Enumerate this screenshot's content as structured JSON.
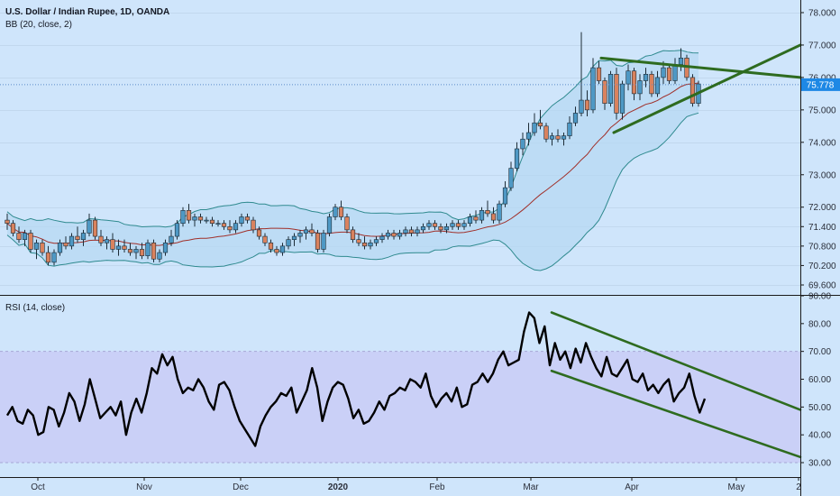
{
  "legend": {
    "symbol": "U.S. Dollar / Indian Rupee, 1D, OANDA",
    "bb": "BB (20, close, 2)",
    "rsi": "RSI (14, close)"
  },
  "colors": {
    "background": "#cfe5fb",
    "band_fill": "#b5d9f2",
    "band_line": "#2f8a8f",
    "basis_line": "#a0302a",
    "candle_up": "#4e98c4",
    "candle_down": "#d9825e",
    "trendline": "#2e6b1f",
    "rsi_line": "#000000",
    "rsi_band_fill": "#c8c8f5",
    "price_label_bg": "#1e88e5",
    "last_price_line": "#5b8cc9"
  },
  "chart_data": [
    {
      "type": "candlestick",
      "title": "U.S. Dollar / Indian Rupee, 1D, OANDA",
      "indicator": "BB (20, close, 2)",
      "price_ticks": [
        "78.000",
        "77.000",
        "76.000",
        "75.000",
        "74.000",
        "73.000",
        "72.000",
        "71.400",
        "70.800",
        "70.200",
        "69.600"
      ],
      "ylim": [
        69.3,
        78.2
      ],
      "last_price": "75.778",
      "candles": [
        [
          71.6,
          71.8,
          71.3,
          71.5
        ],
        [
          71.5,
          71.6,
          71.1,
          71.2
        ],
        [
          71.2,
          71.4,
          70.9,
          71.0
        ],
        [
          71.0,
          71.3,
          70.8,
          71.2
        ],
        [
          71.2,
          71.3,
          70.6,
          70.7
        ],
        [
          70.7,
          71.0,
          70.4,
          70.9
        ],
        [
          70.9,
          71.0,
          70.5,
          70.6
        ],
        [
          70.6,
          70.8,
          70.2,
          70.3
        ],
        [
          70.3,
          70.7,
          70.2,
          70.6
        ],
        [
          70.6,
          71.0,
          70.5,
          70.9
        ],
        [
          70.9,
          71.1,
          70.7,
          70.8
        ],
        [
          70.8,
          71.2,
          70.7,
          71.1
        ],
        [
          71.1,
          71.4,
          70.9,
          71.0
        ],
        [
          71.0,
          71.3,
          70.8,
          71.2
        ],
        [
          71.2,
          71.8,
          71.1,
          71.6
        ],
        [
          71.6,
          71.7,
          71.0,
          71.1
        ],
        [
          71.1,
          71.3,
          70.8,
          70.9
        ],
        [
          70.9,
          71.1,
          70.7,
          71.0
        ],
        [
          71.0,
          71.2,
          70.6,
          70.7
        ],
        [
          70.7,
          71.0,
          70.5,
          70.8
        ],
        [
          70.8,
          71.0,
          70.6,
          70.7
        ],
        [
          70.7,
          70.9,
          70.5,
          70.6
        ],
        [
          70.6,
          70.8,
          70.4,
          70.7
        ],
        [
          70.7,
          70.9,
          70.4,
          70.5
        ],
        [
          70.5,
          71.0,
          70.4,
          70.9
        ],
        [
          70.9,
          71.0,
          70.3,
          70.4
        ],
        [
          70.4,
          70.7,
          70.3,
          70.6
        ],
        [
          70.6,
          71.0,
          70.5,
          70.9
        ],
        [
          70.9,
          71.3,
          70.8,
          71.1
        ],
        [
          71.1,
          71.6,
          71.0,
          71.5
        ],
        [
          71.5,
          72.0,
          71.4,
          71.9
        ],
        [
          71.9,
          72.1,
          71.5,
          71.6
        ],
        [
          71.6,
          71.8,
          71.4,
          71.7
        ],
        [
          71.7,
          71.8,
          71.5,
          71.6
        ],
        [
          71.6,
          71.7,
          71.5,
          71.6
        ],
        [
          71.6,
          71.7,
          71.4,
          71.5
        ],
        [
          71.5,
          71.6,
          71.4,
          71.5
        ],
        [
          71.5,
          71.6,
          71.3,
          71.4
        ],
        [
          71.4,
          71.6,
          71.2,
          71.3
        ],
        [
          71.3,
          71.6,
          71.2,
          71.5
        ],
        [
          71.5,
          71.8,
          71.4,
          71.7
        ],
        [
          71.7,
          71.8,
          71.5,
          71.6
        ],
        [
          71.6,
          71.7,
          71.2,
          71.3
        ],
        [
          71.3,
          71.4,
          71.0,
          71.1
        ],
        [
          71.1,
          71.2,
          70.8,
          70.9
        ],
        [
          70.9,
          71.0,
          70.6,
          70.7
        ],
        [
          70.7,
          70.8,
          70.5,
          70.6
        ],
        [
          70.6,
          70.9,
          70.5,
          70.8
        ],
        [
          70.8,
          71.1,
          70.7,
          71.0
        ],
        [
          71.0,
          71.2,
          70.8,
          71.1
        ],
        [
          71.1,
          71.3,
          70.9,
          71.2
        ],
        [
          71.2,
          71.4,
          71.0,
          71.3
        ],
        [
          71.3,
          71.5,
          71.1,
          71.2
        ],
        [
          71.2,
          71.3,
          70.6,
          70.7
        ],
        [
          70.7,
          71.3,
          70.6,
          71.2
        ],
        [
          71.2,
          71.8,
          71.1,
          71.7
        ],
        [
          71.7,
          72.1,
          71.6,
          72.0
        ],
        [
          72.0,
          72.2,
          71.6,
          71.7
        ],
        [
          71.7,
          71.8,
          71.2,
          71.3
        ],
        [
          71.3,
          71.4,
          70.9,
          71.0
        ],
        [
          71.0,
          71.2,
          70.8,
          70.9
        ],
        [
          70.9,
          71.1,
          70.7,
          70.8
        ],
        [
          70.8,
          71.0,
          70.7,
          70.9
        ],
        [
          70.9,
          71.1,
          70.8,
          71.0
        ],
        [
          71.0,
          71.2,
          70.9,
          71.1
        ],
        [
          71.1,
          71.3,
          71.0,
          71.2
        ],
        [
          71.2,
          71.3,
          71.0,
          71.1
        ],
        [
          71.1,
          71.3,
          71.0,
          71.2
        ],
        [
          71.2,
          71.4,
          71.1,
          71.3
        ],
        [
          71.3,
          71.4,
          71.1,
          71.2
        ],
        [
          71.2,
          71.4,
          71.1,
          71.3
        ],
        [
          71.3,
          71.5,
          71.2,
          71.4
        ],
        [
          71.4,
          71.6,
          71.3,
          71.5
        ],
        [
          71.5,
          71.6,
          71.3,
          71.4
        ],
        [
          71.4,
          71.5,
          71.2,
          71.3
        ],
        [
          71.3,
          71.5,
          71.2,
          71.4
        ],
        [
          71.4,
          71.6,
          71.3,
          71.5
        ],
        [
          71.5,
          71.6,
          71.3,
          71.4
        ],
        [
          71.4,
          71.6,
          71.3,
          71.5
        ],
        [
          71.5,
          71.8,
          71.4,
          71.7
        ],
        [
          71.7,
          71.9,
          71.5,
          71.6
        ],
        [
          71.6,
          72.0,
          71.5,
          71.9
        ],
        [
          71.9,
          72.2,
          71.7,
          71.8
        ],
        [
          71.8,
          72.0,
          71.5,
          71.6
        ],
        [
          71.6,
          72.2,
          71.5,
          72.1
        ],
        [
          72.1,
          72.8,
          72.0,
          72.6
        ],
        [
          72.6,
          73.4,
          72.5,
          73.2
        ],
        [
          73.2,
          74.0,
          73.1,
          73.8
        ],
        [
          73.8,
          74.3,
          73.6,
          74.1
        ],
        [
          74.1,
          74.6,
          73.9,
          74.3
        ],
        [
          74.3,
          74.9,
          74.2,
          74.6
        ],
        [
          74.6,
          75.0,
          74.4,
          74.5
        ],
        [
          74.5,
          74.6,
          74.0,
          74.1
        ],
        [
          74.1,
          74.3,
          73.9,
          74.2
        ],
        [
          74.2,
          74.4,
          74.0,
          74.1
        ],
        [
          74.1,
          74.3,
          73.9,
          74.2
        ],
        [
          74.2,
          74.8,
          74.1,
          74.6
        ],
        [
          74.6,
          75.1,
          74.5,
          74.9
        ],
        [
          74.9,
          77.4,
          74.8,
          75.3
        ],
        [
          75.3,
          75.6,
          74.8,
          75.0
        ],
        [
          75.0,
          76.6,
          74.9,
          76.3
        ],
        [
          76.3,
          76.5,
          75.8,
          75.9
        ],
        [
          75.9,
          76.0,
          75.0,
          75.2
        ],
        [
          75.2,
          76.2,
          75.1,
          76.1
        ],
        [
          76.1,
          76.3,
          74.7,
          74.9
        ],
        [
          74.9,
          75.9,
          74.7,
          75.8
        ],
        [
          75.8,
          76.4,
          75.6,
          76.2
        ],
        [
          76.2,
          76.3,
          75.3,
          75.5
        ],
        [
          75.5,
          76.1,
          75.3,
          75.9
        ],
        [
          75.9,
          76.3,
          75.7,
          76.1
        ],
        [
          76.1,
          76.2,
          75.4,
          75.5
        ],
        [
          75.5,
          76.2,
          75.4,
          76.0
        ],
        [
          76.0,
          76.5,
          75.8,
          76.3
        ],
        [
          76.3,
          76.4,
          75.8,
          75.9
        ],
        [
          75.9,
          76.6,
          75.8,
          76.4
        ],
        [
          76.4,
          76.9,
          76.2,
          76.6
        ],
        [
          76.6,
          76.7,
          75.9,
          76.0
        ],
        [
          76.0,
          76.1,
          75.1,
          75.2
        ],
        [
          75.2,
          75.9,
          75.1,
          75.8
        ]
      ],
      "trendlines": [
        {
          "from": [
            76.6,
            76.0
          ],
          "to": [
            77.0,
            76.0
          ]
        },
        {
          "from": [
            74.3,
            75.8
          ],
          "to": [
            75.5,
            77.0
          ]
        }
      ]
    },
    {
      "type": "line",
      "title": "RSI (14, close)",
      "rsi_ticks": [
        "90.00",
        "80.00",
        "70.00",
        "60.00",
        "50.00",
        "40.00",
        "30.00"
      ],
      "ylim": [
        26,
        90
      ],
      "band": [
        30,
        70
      ],
      "values": [
        47,
        50,
        45,
        44,
        49,
        47,
        40,
        41,
        50,
        49,
        43,
        48,
        55,
        52,
        45,
        51,
        60,
        53,
        46,
        48,
        50,
        47,
        52,
        40,
        48,
        53,
        48,
        55,
        64,
        62,
        69,
        65,
        68,
        60,
        55,
        57,
        56,
        60,
        57,
        52,
        49,
        58,
        59,
        56,
        50,
        45,
        42,
        39,
        36,
        43,
        47,
        50,
        52,
        55,
        54,
        57,
        48,
        52,
        56,
        64,
        57,
        45,
        52,
        57,
        59,
        58,
        53,
        46,
        49,
        44,
        45,
        48,
        52,
        49,
        54,
        55,
        57,
        56,
        60,
        59,
        57,
        62,
        54,
        50,
        53,
        55,
        52,
        57,
        50,
        51,
        58,
        59,
        62,
        59,
        62,
        67,
        70,
        65,
        66,
        67,
        77,
        84,
        82,
        73,
        79,
        65,
        73,
        67,
        70,
        64,
        71,
        66,
        73,
        68,
        64,
        61,
        68,
        62,
        61,
        64,
        67,
        60,
        59,
        62,
        56,
        58,
        55,
        58,
        60,
        52,
        55,
        57,
        62,
        54,
        48,
        53
      ],
      "channel": [
        {
          "from": [
            84,
            49
          ]
        },
        {
          "from": [
            63,
            32
          ]
        }
      ]
    }
  ],
  "x_labels": [
    "Oct",
    "Nov",
    "Dec",
    "2020",
    "Feb",
    "Mar",
    "Apr",
    "May",
    "2"
  ]
}
